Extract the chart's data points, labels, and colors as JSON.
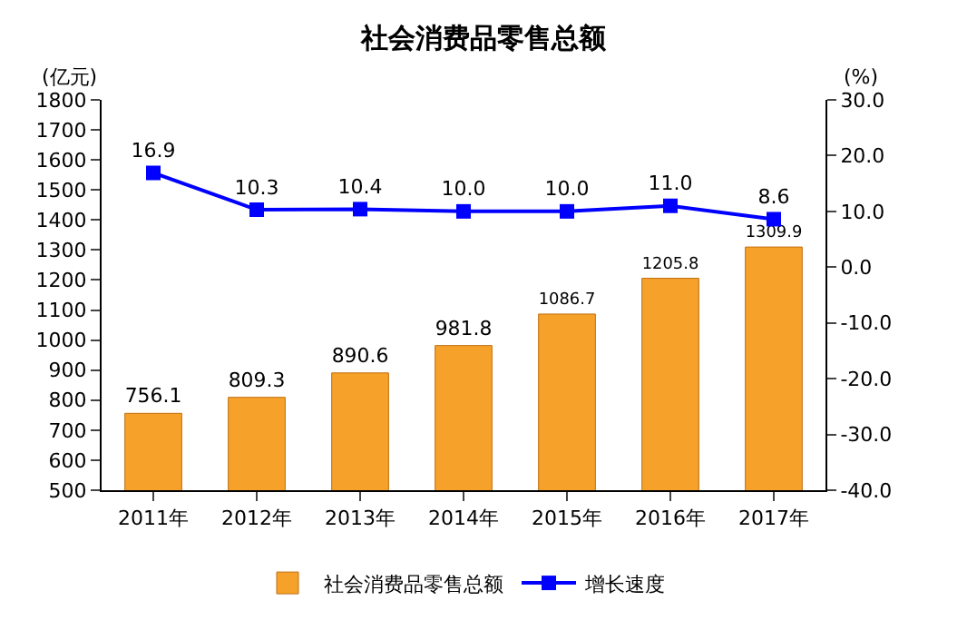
{
  "chart_data": {
    "type": "bar",
    "title": "社会消费品零售总额",
    "ylabel": "(亿元)",
    "y2label": "(%)",
    "categories": [
      "2011年",
      "2012年",
      "2013年",
      "2014年",
      "2015年",
      "2016年",
      "2017年"
    ],
    "series": [
      {
        "name": "社会消费品零售总额",
        "color": "#f5a12a",
        "values": [
          756.1,
          809.3,
          890.6,
          981.8,
          1086.7,
          1205.8,
          1309.9
        ],
        "value_labels": [
          "756.1",
          "809.3",
          "890.6",
          "981.8",
          "1086.7",
          "1205.8",
          "1309.9"
        ]
      },
      {
        "name": "增长速度",
        "type": "line",
        "axis": "y2",
        "color": "#0000ff",
        "values": [
          16.9,
          10.3,
          10.4,
          10.0,
          10.0,
          11.0,
          8.6
        ],
        "value_labels": [
          "16.9",
          "10.3",
          "10.4",
          "10.0",
          "10.0",
          "11.0",
          "8.6"
        ]
      }
    ],
    "ylim": [
      500,
      1800
    ],
    "yticks": [
      500,
      600,
      700,
      800,
      900,
      1000,
      1100,
      1200,
      1300,
      1400,
      1500,
      1600,
      1700,
      1800
    ],
    "y2lim": [
      -40,
      30
    ],
    "y2ticks": [
      {
        "value": -40,
        "label": "-40.0"
      },
      {
        "value": -30,
        "label": "-30.0"
      },
      {
        "value": -20,
        "label": "-20.0"
      },
      {
        "value": -10,
        "label": "-10.0"
      },
      {
        "value": 0,
        "label": "0.0"
      },
      {
        "value": 10,
        "label": "10.0"
      },
      {
        "value": 20,
        "label": "20.0"
      },
      {
        "value": 30,
        "label": "30.0"
      }
    ],
    "marker": "square",
    "line_style": "solid",
    "grid": false,
    "legend": "bottom"
  }
}
